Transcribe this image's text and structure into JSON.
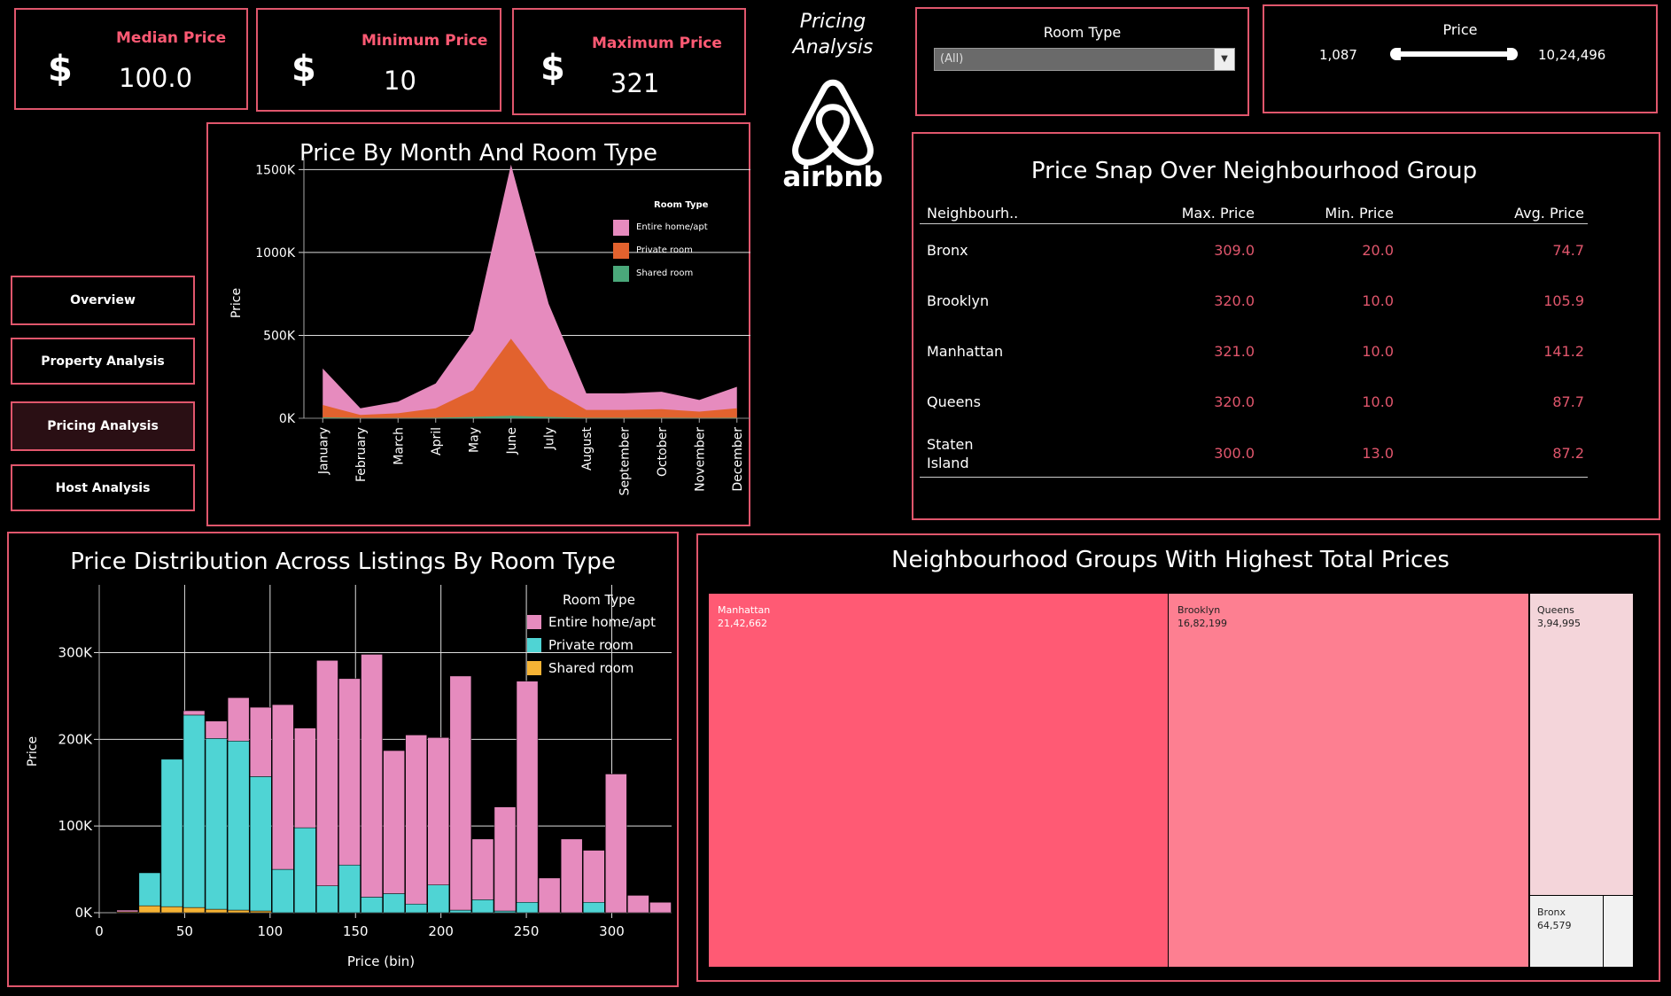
{
  "kpis": [
    {
      "label": "Median Price",
      "value": "100.0",
      "symbol": "$"
    },
    {
      "label": "Minimum Price",
      "value": "10",
      "symbol": "$"
    },
    {
      "label": "Maximum Price",
      "value": "321",
      "symbol": "$"
    }
  ],
  "header": {
    "title_line1": "Pricing",
    "title_line2": "Analysis",
    "logo_text": "airbnb"
  },
  "filters": {
    "room_type": {
      "label": "Room Type",
      "selected": "(All)"
    },
    "price": {
      "label": "Price",
      "min": "1,087",
      "max": "10,24,496"
    }
  },
  "nav": {
    "items": [
      {
        "label": "Overview"
      },
      {
        "label": "Property Analysis"
      },
      {
        "label": "Pricing Analysis",
        "active": true
      },
      {
        "label": "Host Analysis"
      }
    ]
  },
  "month_chart": {
    "title": "Price By Month And Room Type",
    "ylabel": "Price",
    "legend_title": "Room Type",
    "legend": [
      "Entire home/apt",
      "Private room",
      "Shared room"
    ],
    "colors": {
      "entire": "#e68bbe",
      "private": "#e2622e",
      "shared": "#4aa87a"
    }
  },
  "table": {
    "title": "Price Snap Over Neighbourhood Group",
    "headers": [
      "Neighbourh..",
      "Max. Price",
      "Min. Price",
      "Avg. Price"
    ],
    "rows": [
      {
        "name": "Bronx",
        "max": "309.0",
        "min": "20.0",
        "avg": "74.7"
      },
      {
        "name": "Brooklyn",
        "max": "320.0",
        "min": "10.0",
        "avg": "105.9"
      },
      {
        "name": "Manhattan",
        "max": "321.0",
        "min": "10.0",
        "avg": "141.2"
      },
      {
        "name": "Queens",
        "max": "320.0",
        "min": "10.0",
        "avg": "87.7"
      },
      {
        "name": "Staten Island",
        "max": "300.0",
        "min": "13.0",
        "avg": "87.2"
      }
    ]
  },
  "hist_chart": {
    "title": "Price Distribution Across Listings By Room Type",
    "xlabel": "Price (bin)",
    "ylabel": "Price",
    "legend_title": "Room Type",
    "legend": [
      "Entire home/apt",
      "Private room",
      "Shared room"
    ],
    "colors": {
      "entire": "#e68bbe",
      "private": "#4fd4d4",
      "shared": "#f5b335"
    }
  },
  "treemap": {
    "title": "Neighbourhood Groups With Highest Total Prices",
    "cells": [
      {
        "name": "Manhattan",
        "value": "21,42,662"
      },
      {
        "name": "Brooklyn",
        "value": "16,82,199"
      },
      {
        "name": "Queens",
        "value": "3,94,995"
      },
      {
        "name": "Bronx",
        "value": "64,579"
      }
    ]
  },
  "chart_data": [
    {
      "type": "area",
      "title": "Price By Month And Room Type",
      "ylabel": "Price",
      "categories": [
        "January",
        "February",
        "March",
        "April",
        "May",
        "June",
        "July",
        "August",
        "September",
        "October",
        "November",
        "December"
      ],
      "ylim": [
        0,
        1550000
      ],
      "yticks": [
        "0K",
        "500K",
        "1000K",
        "1500K"
      ],
      "legend_placement": "top-right",
      "series": [
        {
          "name": "Entire home/apt",
          "values": [
            300000,
            60000,
            100000,
            210000,
            530000,
            1530000,
            690000,
            150000,
            150000,
            160000,
            110000,
            190000
          ]
        },
        {
          "name": "Private room",
          "values": [
            80000,
            20000,
            30000,
            60000,
            170000,
            480000,
            180000,
            50000,
            50000,
            55000,
            40000,
            60000
          ]
        },
        {
          "name": "Shared room",
          "values": [
            5000,
            2000,
            2000,
            3000,
            8000,
            15000,
            8000,
            3000,
            3000,
            3000,
            2000,
            3000
          ]
        }
      ]
    },
    {
      "type": "bar",
      "title": "Price Distribution Across Listings By Room Type",
      "xlabel": "Price (bin)",
      "ylabel": "Price",
      "xlim": [
        0,
        335
      ],
      "ylim": [
        0,
        370000
      ],
      "xticks": [
        0,
        50,
        100,
        150,
        200,
        250,
        300
      ],
      "yticks": [
        "0K",
        "100K",
        "200K",
        "300K"
      ],
      "bin_width": 13,
      "bins": [
        10,
        23,
        36,
        49,
        62,
        75,
        88,
        101,
        114,
        127,
        140,
        153,
        166,
        179,
        192,
        205,
        218,
        231,
        244,
        257,
        270,
        283,
        296,
        309,
        322
      ],
      "legend_placement": "top-right",
      "series": [
        {
          "name": "Entire home/apt",
          "values": [
            2000,
            0,
            0,
            5000,
            20000,
            50000,
            80000,
            190000,
            115000,
            260000,
            215000,
            280000,
            165000,
            195000,
            170000,
            270000,
            70000,
            120000,
            255000,
            40000,
            85000,
            60000,
            160000,
            20000,
            12000
          ]
        },
        {
          "name": "Private room",
          "values": [
            0,
            38000,
            170000,
            222000,
            197000,
            195000,
            155000,
            50000,
            98000,
            31000,
            55000,
            18000,
            22000,
            10000,
            32000,
            3000,
            15000,
            2000,
            12000,
            0,
            0,
            12000,
            0,
            0,
            0
          ]
        },
        {
          "name": "Shared room",
          "values": [
            1000,
            8000,
            7000,
            6000,
            4000,
            3000,
            2000,
            0,
            0,
            0,
            0,
            0,
            0,
            0,
            0,
            0,
            0,
            0,
            0,
            0,
            0,
            0,
            0,
            0,
            0
          ]
        }
      ]
    }
  ]
}
